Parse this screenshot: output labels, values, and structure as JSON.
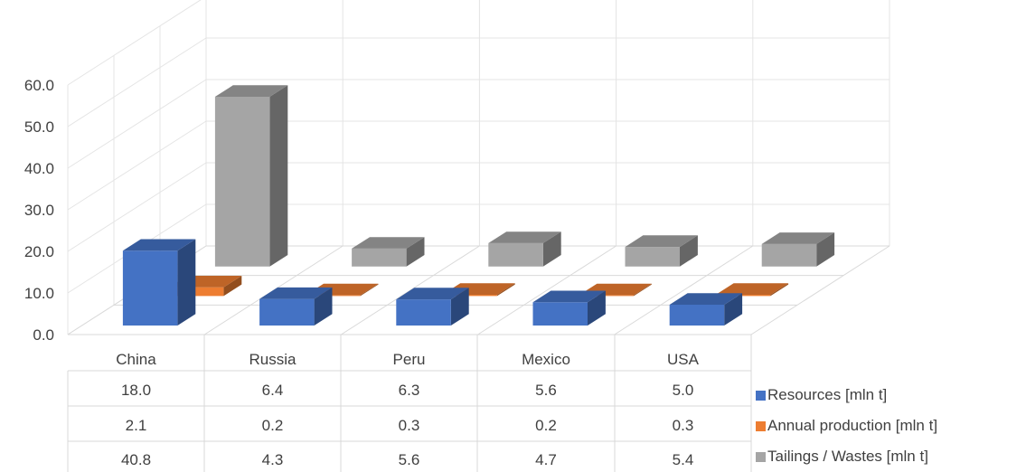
{
  "chart_data": {
    "type": "bar",
    "style": "3d-column-with-data-table",
    "categories": [
      "China",
      "Russia",
      "Peru",
      "Mexico",
      "USA"
    ],
    "series": [
      {
        "name": "Resources [mln t]",
        "values": [
          18.0,
          6.4,
          6.3,
          5.6,
          5.0
        ],
        "color": "#4472C4"
      },
      {
        "name": "Annual production [mln t]",
        "values": [
          2.1,
          0.2,
          0.3,
          0.2,
          0.3
        ],
        "color": "#ED7D31"
      },
      {
        "name": "Tailings / Wastes [mln t]",
        "values": [
          40.8,
          4.3,
          5.6,
          4.7,
          5.4
        ],
        "color": "#A5A5A5"
      }
    ],
    "yticks": [
      "0.0",
      "10.0",
      "20.0",
      "30.0",
      "40.0",
      "50.0",
      "60.0"
    ],
    "ylim": [
      0,
      60
    ],
    "grid": true,
    "legend": "right, beside data table"
  }
}
